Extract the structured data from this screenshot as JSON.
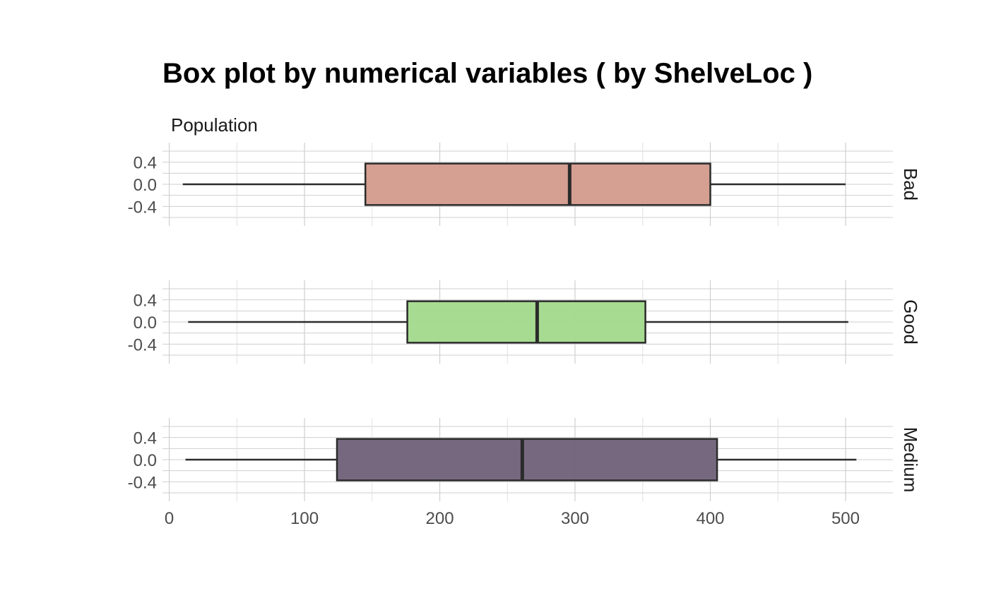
{
  "chart_data": {
    "type": "boxplot",
    "title": "Box plot by numerical variables ( by ShelveLoc )",
    "facet_variable_label": "Population",
    "x_ticks": [
      0,
      100,
      200,
      300,
      400,
      500
    ],
    "xlim": [
      -5,
      535
    ],
    "y_ticks": [
      0.4,
      0.0,
      -0.4
    ],
    "y_tick_labels": [
      "0.4",
      "0.0",
      "-0.4"
    ],
    "ylim": [
      -0.6,
      0.6
    ],
    "grid": true,
    "panels": [
      {
        "name": "Bad",
        "min": 10,
        "q1": 145,
        "median": 296,
        "q3": 400,
        "max": 500,
        "color": "#d39a8c"
      },
      {
        "name": "Good",
        "min": 14,
        "q1": 176,
        "median": 272,
        "q3": 352,
        "max": 502,
        "color": "#a2d98b"
      },
      {
        "name": "Medium",
        "min": 12,
        "q1": 124,
        "median": 261,
        "q3": 405,
        "max": 508,
        "color": "#6f6178"
      }
    ]
  }
}
